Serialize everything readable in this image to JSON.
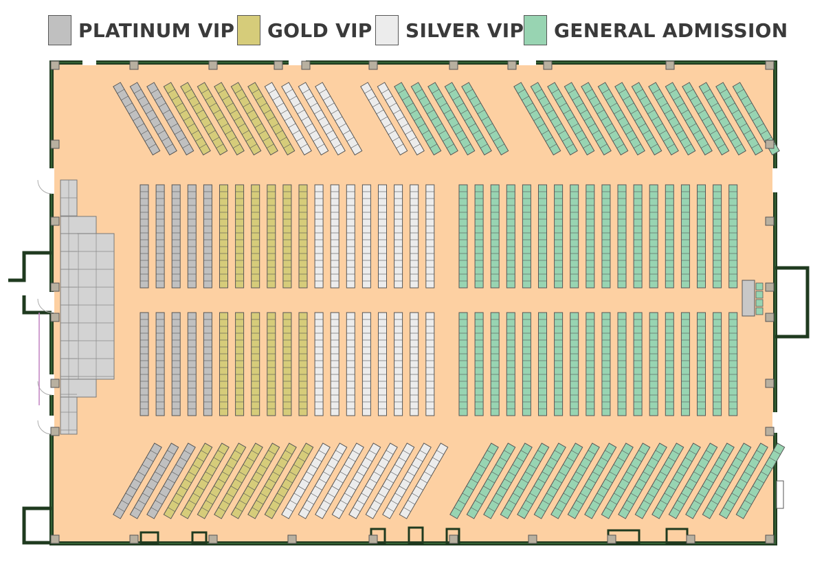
{
  "legend": [
    {
      "key": "platinum",
      "label": "PLATINUM VIP",
      "color": "#c0c0c0"
    },
    {
      "key": "gold",
      "label": "GOLD VIP",
      "color": "#d6cc7a"
    },
    {
      "key": "silver",
      "label": "SILVER VIP",
      "color": "#ececec"
    },
    {
      "key": "general",
      "label": "GENERAL ADMISSION",
      "color": "#98d4b2"
    }
  ],
  "colors": {
    "floor": "#fdd0a2",
    "wall": "#1f3a1f",
    "column": "#b8b0a0",
    "stage": "#d3d3d3",
    "seat_border": "#555555"
  },
  "seating": {
    "top_angled_left": [
      "platinum",
      "platinum",
      "platinum",
      "gold",
      "gold",
      "gold",
      "gold",
      "gold",
      "gold",
      "silver",
      "silver",
      "silver",
      "silver"
    ],
    "top_angled_middle": [
      "silver",
      "silver",
      "general",
      "general",
      "general",
      "general",
      "general"
    ],
    "top_angled_right": [
      "general",
      "general",
      "general",
      "general",
      "general",
      "general",
      "general",
      "general",
      "general",
      "general",
      "general",
      "general",
      "general",
      "general"
    ],
    "center_left": [
      "platinum",
      "platinum",
      "platinum",
      "platinum",
      "platinum",
      "gold",
      "gold",
      "gold",
      "gold",
      "gold",
      "gold",
      "silver",
      "silver",
      "silver",
      "silver",
      "silver",
      "silver",
      "silver",
      "silver"
    ],
    "center_right": [
      "general",
      "general",
      "general",
      "general",
      "general",
      "general",
      "general",
      "general",
      "general",
      "general",
      "general",
      "general",
      "general",
      "general",
      "general",
      "general",
      "general",
      "general"
    ],
    "bottom_angled_left": [
      "platinum",
      "platinum",
      "platinum",
      "gold",
      "gold",
      "gold",
      "gold",
      "gold",
      "gold",
      "gold",
      "silver",
      "silver",
      "silver",
      "silver",
      "silver",
      "silver",
      "silver",
      "silver"
    ],
    "bottom_angled_right": [
      "general",
      "general",
      "general",
      "general",
      "general",
      "general",
      "general",
      "general",
      "general",
      "general",
      "general",
      "general",
      "general",
      "general",
      "general",
      "general",
      "general",
      "general"
    ]
  }
}
